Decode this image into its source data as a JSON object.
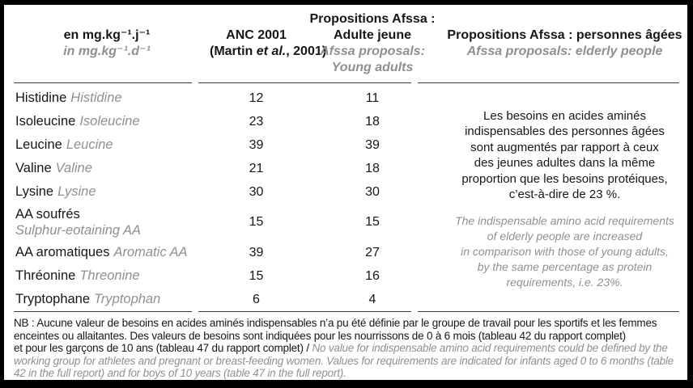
{
  "table": {
    "header": {
      "unit_fr": "en mg.kg⁻¹.j⁻¹",
      "unit_en": "in mg.kg⁻¹.d⁻¹",
      "anc_line1": "ANC 2001",
      "anc_line2_pre": "(Martin ",
      "anc_line2_italic": "et al.",
      "anc_line2_post": ", 2001)",
      "afssa_young_fr": "Propositions Afssa :\nAdulte jeune",
      "afssa_young_en": "Afssa proposals:\nYoung adults",
      "afssa_elderly_fr": "Propositions Afssa : personnes âgées",
      "afssa_elderly_en": "Afssa proposals: elderly people"
    },
    "rows": [
      {
        "fr": "Histidine",
        "en": "Histidine",
        "anc": 12,
        "afssa": 11
      },
      {
        "fr": "Isoleucine",
        "en": "Isoleucine",
        "anc": 23,
        "afssa": 18
      },
      {
        "fr": "Leucine",
        "en": "Leucine",
        "anc": 39,
        "afssa": 39
      },
      {
        "fr": "Valine",
        "en": "Valine",
        "anc": 21,
        "afssa": 18
      },
      {
        "fr": "Lysine",
        "en": "Lysine",
        "anc": 30,
        "afssa": 30
      },
      {
        "fr": "AA soufrés",
        "en": "Sulphur-eotaining AA",
        "anc": 15,
        "afssa": 15
      },
      {
        "fr": "AA aromatiques",
        "en": "Aromatic AA",
        "anc": 39,
        "afssa": 27
      },
      {
        "fr": "Thréonine",
        "en": "Threonine",
        "anc": 15,
        "afssa": 16
      },
      {
        "fr": "Tryptophane",
        "en": "Tryptophan",
        "anc": 6,
        "afssa": 4
      }
    ],
    "elderly_note_fr": "Les besoins en acides aminés\nindispensables des personnes âgées\nsont augmentés par rapport à ceux\ndes jeunes adultes dans la même\nproportion que les besoins protéiques,\nc’est-à-dire de 23 %.",
    "elderly_note_en": "The indispensable amino acid requirements\nof elderly people are increased\nin comparison with those of young adults,\nby the same percentage as protein\nrequirements, i.e. 23%."
  },
  "footnote": {
    "fr": "NB : Aucune valeur de besoins en acides aminés indispensables n’a pu été définie par le groupe de travail pour les sportifs et les femmes\nenceintes ou allaitantes. Des valeurs de besoins sont indiquées pour les nourrissons de 0 à 6 mois (tableau 42 du rapport complet)\net pour les garçons de 10 ans (tableau 47 du rapport complet) / ",
    "en": "No value for indispensable amino acid requirements could be defined by the working group for athletes and pregnant or breast-feeding women. Values for requirements are indicated for infants aged 0 to 6 months (table 42 in the full report) and for boys of 10 years (table 47 in the full report)."
  },
  "colors": {
    "text": "#161616",
    "muted_gray": "#8d9093",
    "rule": "#3c3c3c",
    "frame": "#000000",
    "background": "#ffffff"
  }
}
